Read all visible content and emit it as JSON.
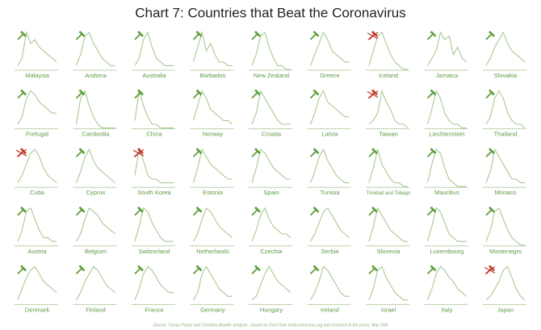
{
  "chart_data": {
    "type": "line",
    "title": "Chart 7: Countries that Beat the Coronavirus",
    "source": "Source: Tomas Pueyo and Christina Mueller analysis , based on chart from endcoronavirus.org and research in the press, May 20th",
    "ylim": [
      0,
      10
    ],
    "line_color": "#a9c994",
    "panels": [
      {
        "name": "Malaysia",
        "color": "#5c9e3a",
        "values": [
          1,
          3,
          10,
          7,
          8,
          6,
          5,
          4,
          3,
          2
        ]
      },
      {
        "name": "Andorra",
        "color": "#5c9e3a",
        "values": [
          1,
          4,
          9,
          10,
          7,
          5,
          3,
          2,
          1,
          1
        ]
      },
      {
        "name": "Australia",
        "color": "#5c9e3a",
        "values": [
          1,
          3,
          8,
          10,
          6,
          3,
          2,
          1,
          1,
          1
        ]
      },
      {
        "name": "Barbados",
        "color": "#5c9e3a",
        "values": [
          2,
          6,
          10,
          5,
          7,
          4,
          2,
          2,
          1,
          1
        ]
      },
      {
        "name": "New Zealand",
        "color": "#5c9e3a",
        "values": [
          1,
          4,
          9,
          10,
          6,
          3,
          1,
          1,
          0,
          0
        ]
      },
      {
        "name": "Greece",
        "color": "#5c9e3a",
        "values": [
          1,
          4,
          7,
          10,
          8,
          5,
          4,
          3,
          2,
          2
        ]
      },
      {
        "name": "Iceland",
        "color": "#c0392b",
        "values": [
          1,
          5,
          9,
          10,
          7,
          4,
          2,
          1,
          0,
          0
        ]
      },
      {
        "name": "Jamaica",
        "color": "#5c9e3a",
        "values": [
          1,
          3,
          5,
          10,
          8,
          9,
          4,
          6,
          3,
          2
        ]
      },
      {
        "name": "Slovakia",
        "color": "#5c9e3a",
        "values": [
          1,
          3,
          6,
          8,
          10,
          7,
          5,
          4,
          3,
          2
        ]
      },
      {
        "name": "Portugal",
        "color": "#5c9e3a",
        "values": [
          1,
          3,
          8,
          10,
          9,
          7,
          6,
          5,
          4,
          4
        ]
      },
      {
        "name": "Cambodia",
        "color": "#5c9e3a",
        "values": [
          1,
          8,
          10,
          6,
          3,
          1,
          0,
          0,
          0,
          0
        ]
      },
      {
        "name": "China",
        "color": "#5c9e3a",
        "values": [
          2,
          10,
          6,
          3,
          1,
          1,
          0,
          0,
          0,
          0
        ]
      },
      {
        "name": "Norway",
        "color": "#5c9e3a",
        "values": [
          2,
          6,
          10,
          8,
          5,
          4,
          3,
          2,
          2,
          1
        ]
      },
      {
        "name": "Croatia",
        "color": "#5c9e3a",
        "values": [
          1,
          4,
          10,
          8,
          6,
          4,
          2,
          1,
          1,
          1
        ]
      },
      {
        "name": "Latvia",
        "color": "#5c9e3a",
        "values": [
          1,
          4,
          8,
          10,
          7,
          6,
          5,
          4,
          3,
          3
        ]
      },
      {
        "name": "Taiwan",
        "color": "#c0392b",
        "values": [
          1,
          2,
          4,
          10,
          7,
          5,
          2,
          1,
          1,
          0
        ]
      },
      {
        "name": "Liechtenstein",
        "color": "#5c9e3a",
        "values": [
          1,
          5,
          10,
          8,
          4,
          2,
          1,
          1,
          0,
          0
        ]
      },
      {
        "name": "Thailand",
        "color": "#5c9e3a",
        "values": [
          1,
          3,
          8,
          10,
          8,
          4,
          2,
          1,
          1,
          0
        ]
      },
      {
        "name": "Cuba",
        "color": "#c0392b",
        "values": [
          1,
          3,
          6,
          9,
          10,
          8,
          5,
          3,
          2,
          1
        ]
      },
      {
        "name": "Cyprus",
        "color": "#5c9e3a",
        "values": [
          1,
          4,
          8,
          10,
          7,
          5,
          4,
          3,
          2,
          1
        ]
      },
      {
        "name": "South Korea",
        "color": "#c0392b",
        "values": [
          3,
          10,
          7,
          3,
          2,
          2,
          1,
          1,
          1,
          1
        ]
      },
      {
        "name": "Estonia",
        "color": "#5c9e3a",
        "values": [
          1,
          5,
          10,
          8,
          6,
          5,
          4,
          3,
          2,
          2
        ]
      },
      {
        "name": "Spain",
        "color": "#5c9e3a",
        "values": [
          1,
          5,
          10,
          9,
          7,
          5,
          4,
          3,
          2,
          2
        ]
      },
      {
        "name": "Tunisia",
        "color": "#5c9e3a",
        "values": [
          1,
          4,
          8,
          10,
          7,
          5,
          3,
          2,
          1,
          1
        ]
      },
      {
        "name": "Trinidad and Tobago",
        "color": "#5c9e3a",
        "values": [
          1,
          5,
          10,
          6,
          4,
          2,
          1,
          1,
          0,
          0
        ]
      },
      {
        "name": "Mauritius",
        "color": "#5c9e3a",
        "values": [
          1,
          6,
          10,
          9,
          5,
          2,
          1,
          0,
          0,
          0
        ]
      },
      {
        "name": "Monaco",
        "color": "#5c9e3a",
        "values": [
          1,
          4,
          10,
          8,
          6,
          4,
          2,
          2,
          1,
          1
        ]
      },
      {
        "name": "Austria",
        "color": "#5c9e3a",
        "values": [
          1,
          4,
          9,
          10,
          7,
          4,
          2,
          2,
          1,
          1
        ]
      },
      {
        "name": "Belgium",
        "color": "#5c9e3a",
        "values": [
          1,
          3,
          7,
          10,
          9,
          8,
          6,
          5,
          4,
          3
        ]
      },
      {
        "name": "Switzerland",
        "color": "#5c9e3a",
        "values": [
          1,
          5,
          10,
          9,
          6,
          4,
          2,
          1,
          1,
          1
        ]
      },
      {
        "name": "Netherlands",
        "color": "#5c9e3a",
        "values": [
          1,
          3,
          7,
          10,
          9,
          7,
          5,
          4,
          3,
          2
        ]
      },
      {
        "name": "Czechia",
        "color": "#5c9e3a",
        "values": [
          1,
          4,
          8,
          10,
          7,
          5,
          4,
          3,
          3,
          2
        ]
      },
      {
        "name": "Serbia",
        "color": "#5c9e3a",
        "values": [
          1,
          3,
          6,
          9,
          10,
          8,
          6,
          4,
          3,
          2
        ]
      },
      {
        "name": "Slovenia",
        "color": "#5c9e3a",
        "values": [
          1,
          5,
          10,
          8,
          6,
          4,
          3,
          2,
          1,
          1
        ]
      },
      {
        "name": "Luxembourg",
        "color": "#5c9e3a",
        "values": [
          1,
          5,
          10,
          9,
          6,
          3,
          2,
          1,
          1,
          1
        ]
      },
      {
        "name": "Montenegro",
        "color": "#5c9e3a",
        "values": [
          1,
          4,
          9,
          10,
          7,
          4,
          2,
          1,
          0,
          0
        ]
      },
      {
        "name": "Denmark",
        "color": "#5c9e3a",
        "values": [
          1,
          4,
          7,
          9,
          10,
          8,
          6,
          5,
          4,
          3
        ]
      },
      {
        "name": "Finland",
        "color": "#5c9e3a",
        "values": [
          1,
          3,
          6,
          8,
          10,
          9,
          7,
          5,
          4,
          3
        ]
      },
      {
        "name": "France",
        "color": "#5c9e3a",
        "values": [
          1,
          4,
          8,
          10,
          9,
          7,
          5,
          4,
          3,
          3
        ]
      },
      {
        "name": "Germany",
        "color": "#5c9e3a",
        "values": [
          1,
          3,
          8,
          10,
          8,
          6,
          4,
          3,
          2,
          2
        ]
      },
      {
        "name": "Hungary",
        "color": "#5c9e3a",
        "values": [
          1,
          2,
          5,
          8,
          10,
          8,
          6,
          5,
          4,
          3
        ]
      },
      {
        "name": "Ireland",
        "color": "#5c9e3a",
        "values": [
          1,
          3,
          6,
          10,
          9,
          7,
          5,
          3,
          2,
          2
        ]
      },
      {
        "name": "Israel",
        "color": "#5c9e3a",
        "values": [
          1,
          4,
          9,
          10,
          7,
          5,
          3,
          2,
          1,
          1
        ]
      },
      {
        "name": "Italy",
        "color": "#5c9e3a",
        "values": [
          1,
          4,
          8,
          10,
          9,
          7,
          6,
          4,
          3,
          2
        ]
      },
      {
        "name": "Japan",
        "color": "#c0392b",
        "values": [
          1,
          2,
          4,
          6,
          9,
          10,
          7,
          4,
          2,
          1
        ]
      }
    ]
  }
}
